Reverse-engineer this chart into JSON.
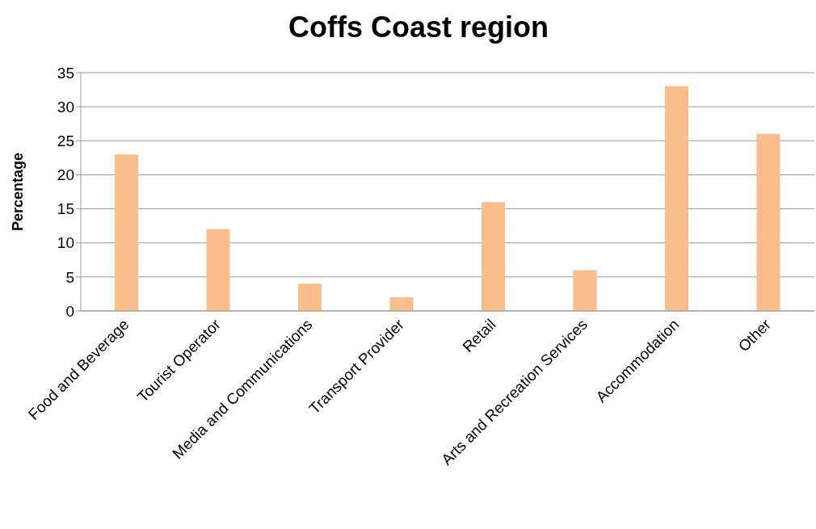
{
  "chart_data": {
    "type": "bar",
    "title": "Coffs Coast region",
    "ylabel": "Percentage",
    "categories": [
      "Food and Beverage",
      "Tourist Operator",
      "Media and Communications",
      "Transport Provider",
      "Retail",
      "Arts and Recreation Services",
      "Accommodation",
      "Other"
    ],
    "values": [
      23,
      12,
      4,
      2,
      16,
      6,
      33,
      26
    ],
    "color": "#f9be8c",
    "ylim": [
      0,
      35
    ],
    "yticks": [
      0,
      5,
      10,
      15,
      20,
      25,
      30,
      35
    ],
    "grid": "y"
  }
}
